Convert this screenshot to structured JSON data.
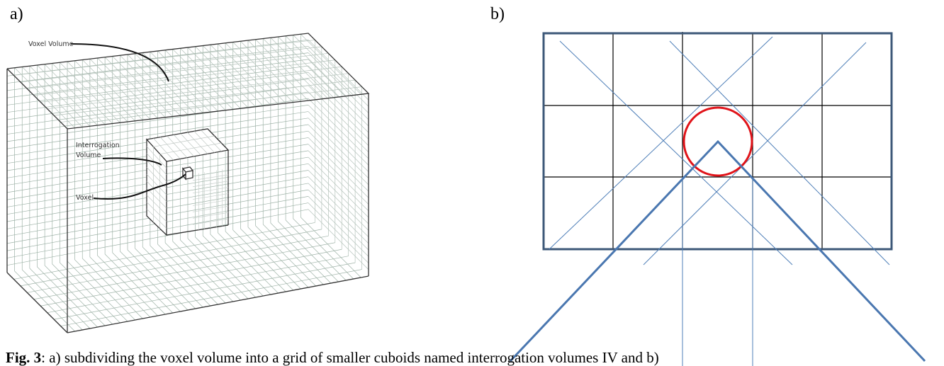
{
  "panel_a": {
    "label": "a)",
    "voxel_volume": "Voxel Volume",
    "interrogation_volume": [
      "Interrogation",
      "Volume"
    ],
    "voxel": "Voxel"
  },
  "panel_b": {
    "label": "b)"
  },
  "caption": {
    "label": "Fig. 3",
    "text": ": a) subdividing the voxel volume into a grid of smaller cuboids named interrogation volumes IV and b)"
  }
}
